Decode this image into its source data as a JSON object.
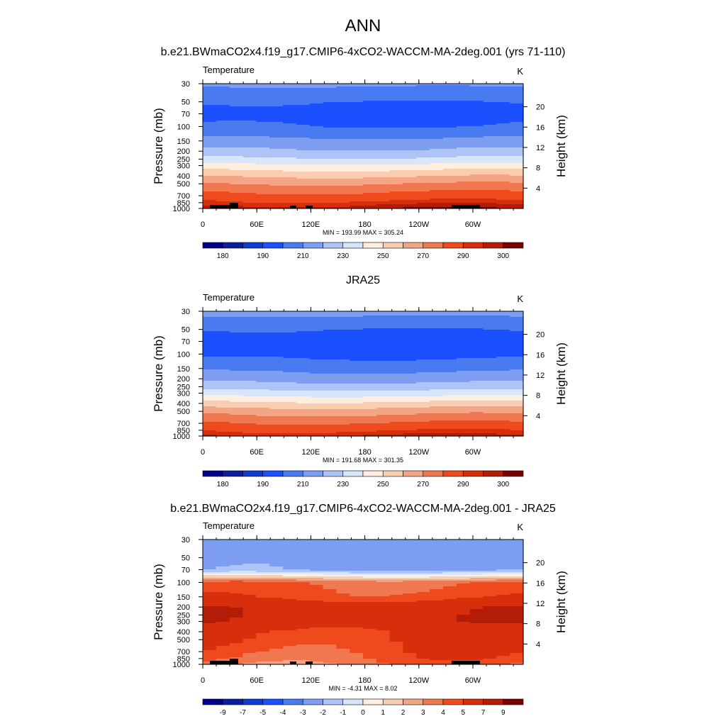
{
  "figure": {
    "title": "ANN"
  },
  "chart_data": [
    {
      "type": "heatmap",
      "id": "model",
      "title": "b.e21.BWmaCO2x4.f19_g17.CMIP6-4xCO2-WACCM-MA-2deg.001 (yrs 71-110)",
      "variable": "Temperature",
      "units": "K",
      "xlabel": "",
      "ylabel": "Pressure (mb)",
      "ylabel_right": "Height (km)",
      "x_ticks": [
        "0",
        "60E",
        "120E",
        "180",
        "120W",
        "60W"
      ],
      "y_ticks": [
        "30",
        "50",
        "70",
        "100",
        "150",
        "200",
        "250",
        "300",
        "400",
        "500",
        "700",
        "850",
        "1000"
      ],
      "y_right_ticks": [
        "20",
        "16",
        "12",
        "8",
        "4"
      ],
      "min_max_label": "MIN = 193.99  MAX = 305.24",
      "min": 193.99,
      "max": 305.24,
      "mode": "abs",
      "colorbar": {
        "tick_labels": [
          "180",
          "190",
          "210",
          "230",
          "250",
          "270",
          "290",
          "300"
        ],
        "colors": [
          "#00008a",
          "#0a1fa0",
          "#0f3bd1",
          "#1a50ff",
          "#4a7af0",
          "#7e9ef2",
          "#aec4f7",
          "#d7e6fb",
          "#fdeee0",
          "#f9cdb0",
          "#f4a585",
          "#f07850",
          "#ee4a1e",
          "#d72e0c",
          "#b31d08",
          "#7a0000"
        ]
      },
      "profile_levels_mb": [
        30,
        50,
        70,
        100,
        150,
        200,
        250,
        300,
        400,
        500,
        700,
        850,
        1000
      ],
      "profile_values": [
        212,
        200,
        197,
        200,
        213,
        222,
        232,
        243,
        259,
        270,
        284,
        292,
        299
      ]
    },
    {
      "type": "heatmap",
      "id": "obs",
      "title": "JRA25",
      "variable": "Temperature",
      "units": "K",
      "xlabel": "",
      "ylabel": "Pressure (mb)",
      "ylabel_right": "Height (km)",
      "x_ticks": [
        "0",
        "60E",
        "120E",
        "180",
        "120W",
        "60W"
      ],
      "y_ticks": [
        "30",
        "50",
        "70",
        "100",
        "150",
        "200",
        "250",
        "300",
        "400",
        "500",
        "700",
        "850",
        "1000"
      ],
      "y_right_ticks": [
        "20",
        "16",
        "12",
        "8",
        "4"
      ],
      "min_max_label": "MIN = 191.68  MAX = 301.35",
      "min": 191.68,
      "max": 301.35,
      "mode": "abs",
      "colorbar": {
        "tick_labels": [
          "180",
          "190",
          "210",
          "230",
          "250",
          "270",
          "290",
          "300"
        ],
        "colors": [
          "#00008a",
          "#0a1fa0",
          "#0f3bd1",
          "#1a50ff",
          "#4a7af0",
          "#7e9ef2",
          "#aec4f7",
          "#d7e6fb",
          "#fdeee0",
          "#f9cdb0",
          "#f4a585",
          "#f07850",
          "#ee4a1e",
          "#d72e0c",
          "#b31d08",
          "#7a0000"
        ]
      },
      "profile_levels_mb": [
        30,
        50,
        70,
        100,
        150,
        200,
        250,
        300,
        400,
        500,
        700,
        850,
        1000
      ],
      "profile_values": [
        214,
        200,
        196,
        197,
        207,
        216,
        225,
        235,
        253,
        266,
        281,
        289,
        296
      ]
    },
    {
      "type": "heatmap",
      "id": "diff",
      "title": "b.e21.BWmaCO2x4.f19_g17.CMIP6-4xCO2-WACCM-MA-2deg.001 - JRA25",
      "variable": "Temperature",
      "units": "K",
      "xlabel": "",
      "ylabel": "Pressure (mb)",
      "ylabel_right": "Height (km)",
      "x_ticks": [
        "0",
        "60E",
        "120E",
        "180",
        "120W",
        "60W"
      ],
      "y_ticks": [
        "30",
        "50",
        "70",
        "100",
        "150",
        "200",
        "250",
        "300",
        "400",
        "500",
        "700",
        "850",
        "1000"
      ],
      "y_right_ticks": [
        "20",
        "16",
        "12",
        "8",
        "4"
      ],
      "min_max_label": "MIN =  -4.31  MAX =   8.02",
      "min": -4.31,
      "max": 8.02,
      "mode": "diff",
      "colorbar": {
        "tick_labels": [
          "-9",
          "-7",
          "-5",
          "-4",
          "-3",
          "-2",
          "-1",
          "0",
          "1",
          "2",
          "3",
          "4",
          "5",
          "7",
          "9"
        ],
        "colors": [
          "#00008a",
          "#0a1fa0",
          "#0f3bd1",
          "#1a50ff",
          "#4a7af0",
          "#7e9ef2",
          "#aec4f7",
          "#d7e6fb",
          "#fdeee0",
          "#f9cdb0",
          "#f4a585",
          "#f07850",
          "#ee4a1e",
          "#d72e0c",
          "#b31d08",
          "#7a0000"
        ]
      },
      "profile_levels_mb": [
        30,
        50,
        70,
        100,
        150,
        200,
        250,
        300,
        400,
        500,
        700,
        850,
        1000
      ],
      "profile_values": [
        -2.5,
        -2.5,
        -2.3,
        4.0,
        4.6,
        6.5,
        6.6,
        6.5,
        5.3,
        5.1,
        4.6,
        4.2,
        3.6
      ]
    }
  ]
}
